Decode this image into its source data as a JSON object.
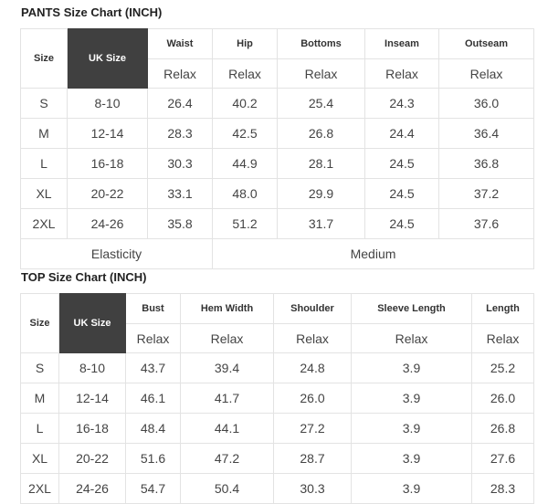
{
  "pants": {
    "title": "PANTS Size Chart (INCH)",
    "size_header": "Size",
    "uk_header": "UK Size",
    "measures": [
      "Waist",
      "Hip",
      "Bottoms",
      "Inseam",
      "Outseam"
    ],
    "sub_label": "Relax",
    "rows": [
      [
        "S",
        "8-10",
        "26.4",
        "40.2",
        "25.4",
        "24.3",
        "36.0"
      ],
      [
        "M",
        "12-14",
        "28.3",
        "42.5",
        "26.8",
        "24.4",
        "36.4"
      ],
      [
        "L",
        "16-18",
        "30.3",
        "44.9",
        "28.1",
        "24.5",
        "36.8"
      ],
      [
        "XL",
        "20-22",
        "33.1",
        "48.0",
        "29.9",
        "24.5",
        "37.2"
      ],
      [
        "2XL",
        "24-26",
        "35.8",
        "51.2",
        "31.7",
        "24.5",
        "37.6"
      ]
    ],
    "elasticity_label": "Elasticity",
    "elasticity_value": "Medium"
  },
  "top": {
    "title": "TOP Size Chart (INCH)",
    "size_header": "Size",
    "uk_header": "UK Size",
    "measures": [
      "Bust",
      "Hem Width",
      "Shoulder",
      "Sleeve Length",
      "Length"
    ],
    "sub_label": "Relax",
    "rows": [
      [
        "S",
        "8-10",
        "43.7",
        "39.4",
        "24.8",
        "3.9",
        "25.2"
      ],
      [
        "M",
        "12-14",
        "46.1",
        "41.7",
        "26.0",
        "3.9",
        "26.0"
      ],
      [
        "L",
        "16-18",
        "48.4",
        "44.1",
        "27.2",
        "3.9",
        "26.8"
      ],
      [
        "XL",
        "20-22",
        "51.6",
        "47.2",
        "28.7",
        "3.9",
        "27.6"
      ],
      [
        "2XL",
        "24-26",
        "54.7",
        "50.4",
        "30.3",
        "3.9",
        "28.3"
      ]
    ]
  },
  "colors": {
    "uk_header_bg": "#404040",
    "border": "#e3e3e3"
  }
}
